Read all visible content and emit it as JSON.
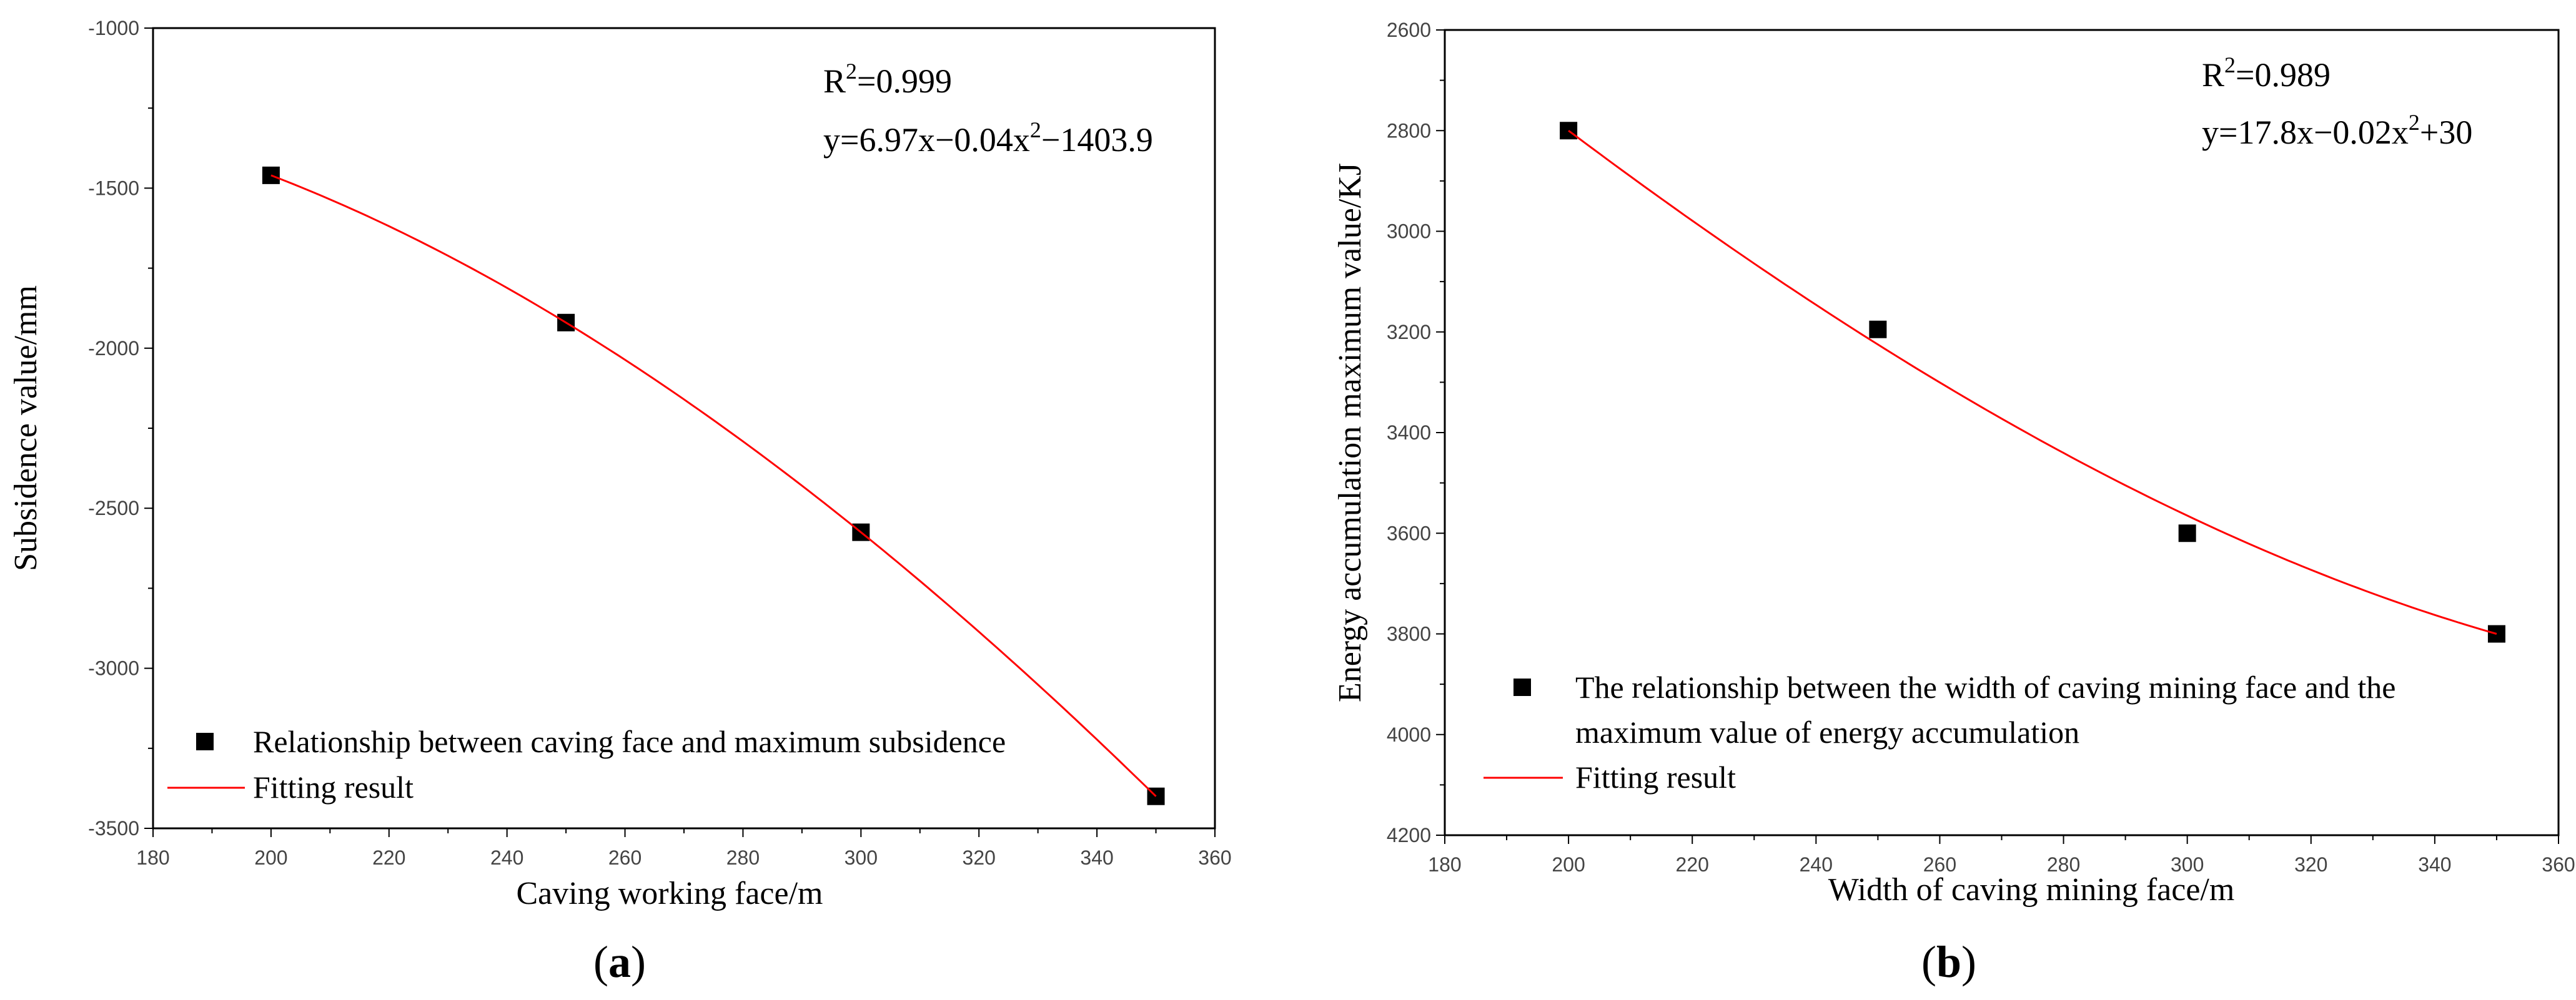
{
  "chart_data": [
    {
      "type": "scatter",
      "panel_label": "a",
      "xlabel": "Caving working face/m",
      "ylabel": "Subsidence value/mm",
      "xlim": [
        180,
        360
      ],
      "ylim": [
        -3500,
        -1000
      ],
      "y_inverted": false,
      "xticks": [
        180,
        200,
        220,
        240,
        260,
        280,
        300,
        320,
        340,
        360
      ],
      "yticks": [
        -3500,
        -3000,
        -2500,
        -2000,
        -1500,
        -1000
      ],
      "x_minor_step": 10,
      "y_minor_step": 250,
      "series": [
        {
          "name": "Relationship between caving face and maximum subsidence",
          "kind": "scatter",
          "marker": "square",
          "color": "#000000",
          "x": [
            200,
            250,
            300,
            350
          ],
          "y": [
            -1460,
            -1920,
            -2575,
            -3400
          ]
        },
        {
          "name": "Fitting result",
          "kind": "fit",
          "color": "#ff0000",
          "fit_points": [
            [
              200,
              -1460
            ],
            [
              250,
              -1920
            ],
            [
              300,
              -2575
            ],
            [
              350,
              -3400
            ]
          ]
        }
      ],
      "legend_lines": [
        "Relationship between caving face and maximum subsidence"
      ],
      "legend_fit_label": "Fitting result",
      "legend_position": "bottom-left",
      "annotation": {
        "r2_label": "R",
        "r2_exp": "2",
        "r2_value": "=0.999",
        "eq_pre": "y=6.97x−0.04x",
        "eq_exp": "2",
        "eq_post": "−1403.9"
      }
    },
    {
      "type": "scatter",
      "panel_label": "b",
      "xlabel": "Width of caving mining face/m",
      "ylabel": "Energy accumulation maximum value/KJ",
      "xlim": [
        180,
        360
      ],
      "ylim": [
        2600,
        4200
      ],
      "y_inverted": true,
      "xticks": [
        180,
        200,
        220,
        240,
        260,
        280,
        300,
        320,
        340,
        360
      ],
      "yticks": [
        2600,
        2800,
        3000,
        3200,
        3400,
        3600,
        3800,
        4000,
        4200
      ],
      "x_minor_step": 10,
      "y_minor_step": 100,
      "series": [
        {
          "name": "The relationship between the width of caving mining face and the maximum value of energy accumulation",
          "kind": "scatter",
          "marker": "square",
          "color": "#000000",
          "x": [
            200,
            250,
            300,
            350
          ],
          "y": [
            2800,
            3195,
            3600,
            3800
          ]
        },
        {
          "name": "Fitting result",
          "kind": "fit",
          "color": "#ff0000",
          "fit_points": [
            [
              200,
              2800
            ],
            [
              250,
              3225
            ],
            [
              300,
              3565
            ],
            [
              350,
              3800
            ]
          ]
        }
      ],
      "legend_lines": [
        "The relationship between the width of caving mining face and the",
        "maximum value of energy accumulation"
      ],
      "legend_fit_label": "Fitting result",
      "legend_position": "bottom-left",
      "annotation": {
        "r2_label": "R",
        "r2_exp": "2",
        "r2_value": "=0.989",
        "eq_pre": "y=17.8x−0.02x",
        "eq_exp": "2",
        "eq_post": "+30"
      }
    }
  ]
}
